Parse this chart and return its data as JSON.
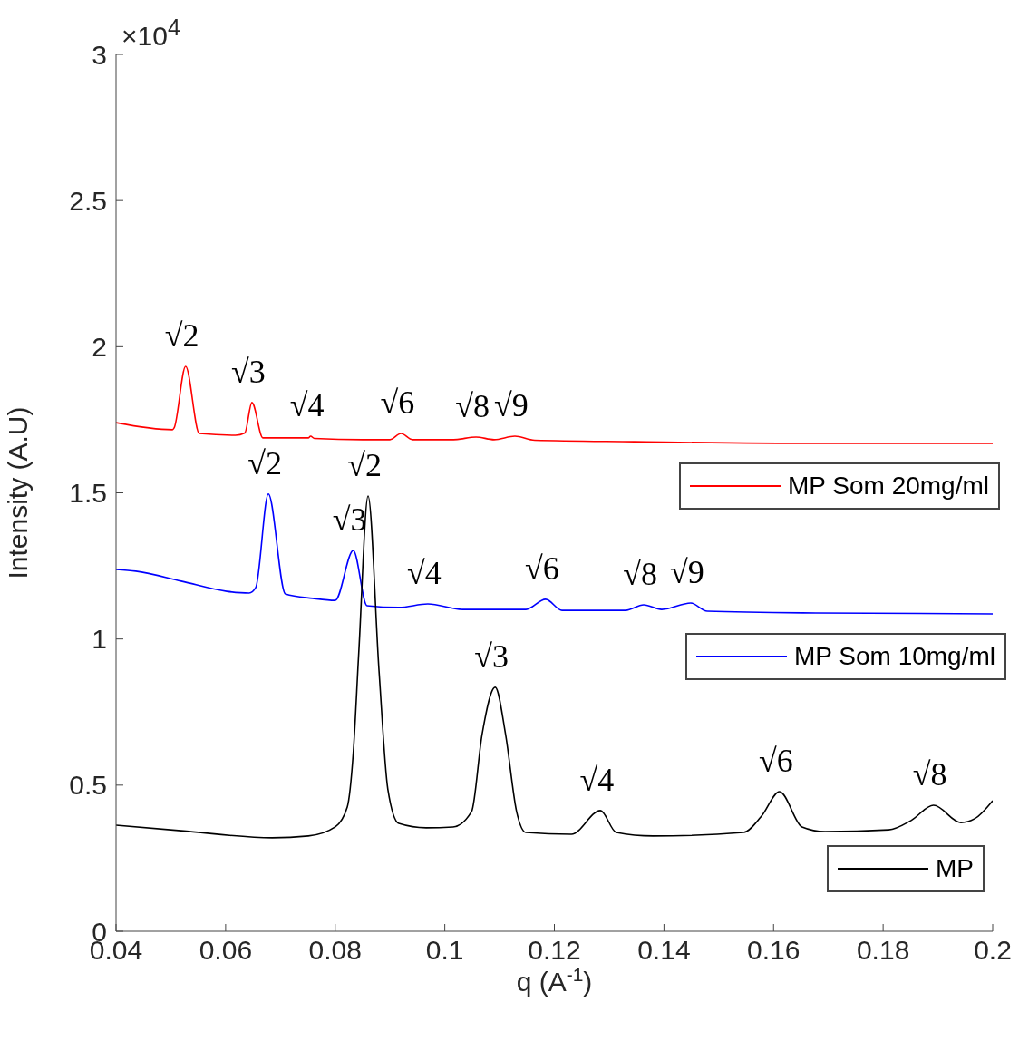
{
  "chart_data": {
    "type": "line",
    "xlabel": "q (A$^{-1}$)",
    "ylabel": "Intensity (A.U)",
    "xlim": [
      0.04,
      0.2
    ],
    "xticks": [
      0.04,
      0.06,
      0.08,
      0.1,
      0.12,
      0.14,
      0.16,
      0.18,
      0.2
    ],
    "ylim": [
      0,
      3
    ],
    "yticks": [
      0,
      0.5,
      1,
      1.5,
      2,
      2.5,
      3
    ],
    "grid": false,
    "legend": "right",
    "marker": "none",
    "line_style": "solid",
    "series": [
      {
        "name": "MP Som 20mg/ml",
        "color": "#ff0000",
        "x": [
          0.04,
          0.0503,
          0.0506,
          0.0527,
          0.0552,
          0.0618,
          0.0635,
          0.0648,
          0.0668,
          0.0751,
          0.0755,
          0.0762,
          0.085,
          0.09,
          0.092,
          0.0941,
          0.1016,
          0.1057,
          0.109,
          0.1128,
          0.1164,
          0.1346,
          0.1677,
          0.2
        ],
        "values": [
          1.74,
          1.716,
          1.722,
          1.933,
          1.703,
          1.697,
          1.705,
          1.809,
          1.688,
          1.688,
          1.694,
          1.686,
          1.682,
          1.682,
          1.703,
          1.682,
          1.682,
          1.691,
          1.682,
          1.694,
          1.68,
          1.675,
          1.669,
          1.669
        ]
      },
      {
        "name": "MP Som 10mg/ml",
        "color": "#0000ff",
        "x": [
          0.04,
          0.0436,
          0.0519,
          0.0602,
          0.0643,
          0.0655,
          0.0678,
          0.0709,
          0.0759,
          0.08,
          0.0833,
          0.0858,
          0.0916,
          0.0969,
          0.1032,
          0.1148,
          0.1184,
          0.1214,
          0.133,
          0.1363,
          0.1396,
          0.1449,
          0.1479,
          0.1677,
          0.2
        ],
        "values": [
          1.238,
          1.232,
          1.198,
          1.163,
          1.157,
          1.176,
          1.496,
          1.154,
          1.139,
          1.132,
          1.303,
          1.114,
          1.108,
          1.12,
          1.101,
          1.101,
          1.136,
          1.098,
          1.098,
          1.117,
          1.101,
          1.123,
          1.095,
          1.089,
          1.086
        ]
      },
      {
        "name": "MP",
        "color": "#000000",
        "x": [
          0.04,
          0.0519,
          0.0685,
          0.0751,
          0.08,
          0.0822,
          0.0833,
          0.0843,
          0.086,
          0.088,
          0.0896,
          0.0916,
          0.0966,
          0.1015,
          0.1049,
          0.1068,
          0.1092,
          0.1111,
          0.1131,
          0.1148,
          0.1231,
          0.1284,
          0.1313,
          0.138,
          0.1545,
          0.1578,
          0.1611,
          0.1652,
          0.1694,
          0.181,
          0.1851,
          0.1892,
          0.1942,
          0.1967,
          0.2
        ],
        "values": [
          0.363,
          0.344,
          0.32,
          0.326,
          0.357,
          0.425,
          0.611,
          0.953,
          1.489,
          0.89,
          0.487,
          0.369,
          0.354,
          0.357,
          0.41,
          0.673,
          0.835,
          0.673,
          0.41,
          0.338,
          0.332,
          0.413,
          0.338,
          0.326,
          0.338,
          0.394,
          0.478,
          0.357,
          0.341,
          0.347,
          0.379,
          0.431,
          0.372,
          0.385,
          0.447
        ]
      }
    ],
    "annotations": [
      "×10$^{4}$",
      {
        "text": "√2",
        "x": 0.0527,
        "y": 1.933
      },
      {
        "text": "√3",
        "x": 0.0648,
        "y": 1.809
      },
      {
        "text": "√4",
        "x": 0.0755,
        "y": 1.694
      },
      {
        "text": "√6",
        "x": 0.092,
        "y": 1.703
      },
      {
        "text": "√8",
        "x": 0.1057,
        "y": 1.691
      },
      {
        "text": "√9",
        "x": 0.1128,
        "y": 1.694
      },
      {
        "text": "√2",
        "x": 0.0678,
        "y": 1.496
      },
      {
        "text": "√3",
        "x": 0.0833,
        "y": 1.303
      },
      {
        "text": "√4",
        "x": 0.0969,
        "y": 1.12
      },
      {
        "text": "√6",
        "x": 0.1184,
        "y": 1.136
      },
      {
        "text": "√8",
        "x": 0.1363,
        "y": 1.117
      },
      {
        "text": "√9",
        "x": 0.1449,
        "y": 1.123
      },
      {
        "text": "√2",
        "x": 0.086,
        "y": 1.489
      },
      {
        "text": "√3",
        "x": 0.1092,
        "y": 0.835
      },
      {
        "text": "√4",
        "x": 0.1284,
        "y": 0.413
      },
      {
        "text": "√6",
        "x": 0.1611,
        "y": 0.478
      },
      {
        "text": "√8",
        "x": 0.1892,
        "y": 0.431
      }
    ]
  }
}
